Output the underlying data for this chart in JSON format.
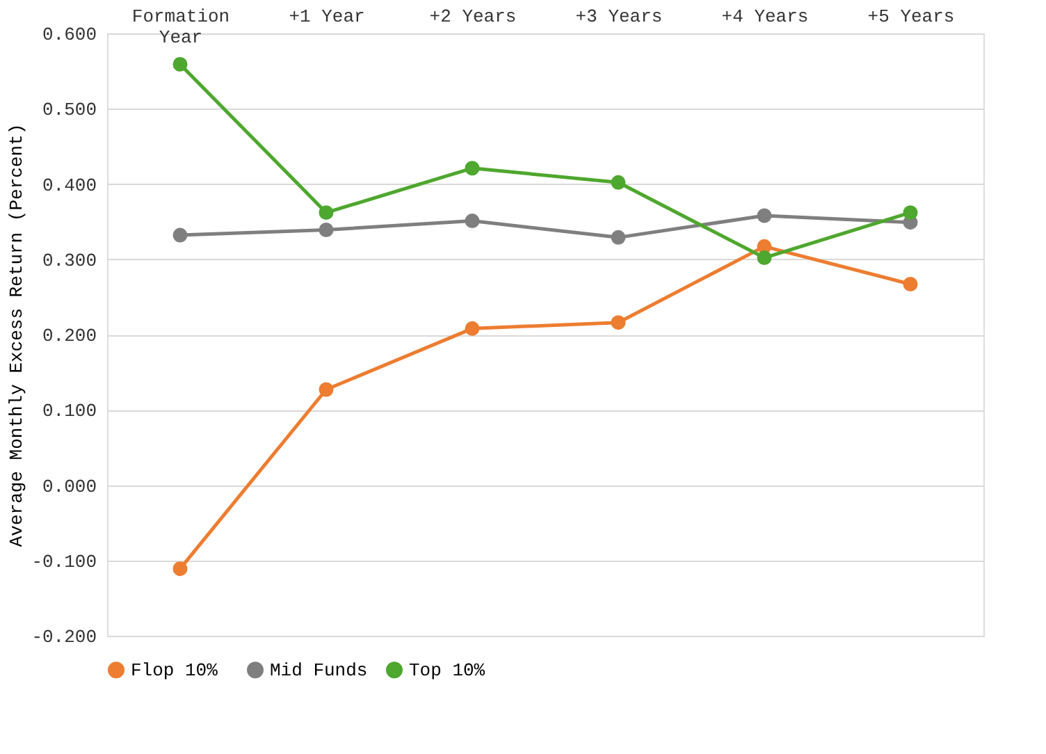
{
  "chart_data": {
    "type": "line",
    "ylabel": "Average Monthly Excess Return (Percent)",
    "categories": [
      "Formation Year",
      "+1 Year",
      "+2 Years",
      "+3 Years",
      "+4 Years",
      "+5 Years"
    ],
    "series": [
      {
        "name": "Flop  10%",
        "color": "#ed7d31",
        "values": [
          -0.111,
          0.127,
          0.208,
          0.216,
          0.317,
          0.267
        ]
      },
      {
        "name": "Mid Funds",
        "color": "#7f7f7f",
        "values": [
          0.332,
          0.339,
          0.351,
          0.329,
          0.358,
          0.349
        ]
      },
      {
        "name": "Top 10%",
        "color": "#4ea72e",
        "values": [
          0.559,
          0.362,
          0.421,
          0.402,
          0.302,
          0.362
        ]
      }
    ],
    "ylim": [
      -0.2,
      0.6
    ],
    "yticks": [
      {
        "value": -0.2,
        "label": "-0.200"
      },
      {
        "value": -0.1,
        "label": "-0.100"
      },
      {
        "value": 0,
        "label": "0.000"
      },
      {
        "value": 0.1,
        "label": "0.100"
      },
      {
        "value": 0.2,
        "label": "0.200"
      },
      {
        "value": 0.3,
        "label": "0.300"
      },
      {
        "value": 0.4,
        "label": "0.400"
      },
      {
        "value": 0.5,
        "label": "0.500"
      },
      {
        "value": 0.6,
        "label": "0.600"
      }
    ],
    "grid": "y",
    "legend": "bottom",
    "marker": "circle",
    "line_style": "solid"
  }
}
